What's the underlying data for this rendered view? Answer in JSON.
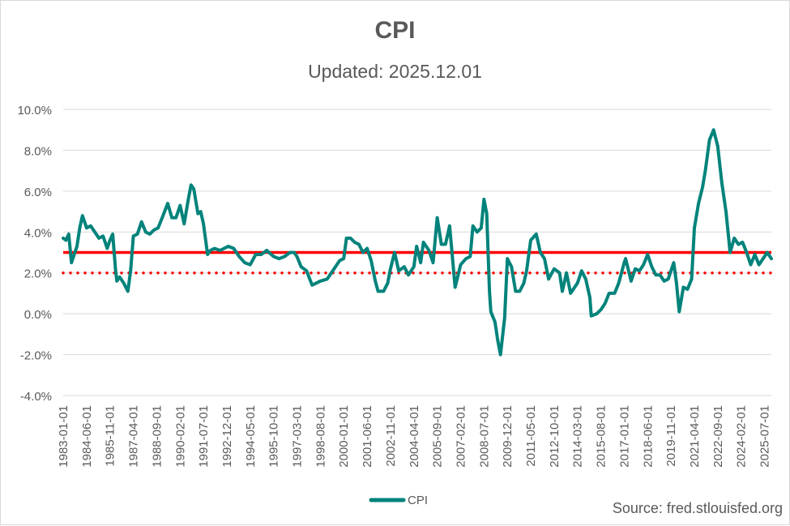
{
  "chart_data": {
    "type": "line",
    "title": "CPI",
    "subtitle": "Updated: 2025.12.01",
    "source": "Source: fred.stlouisfed.org",
    "ylim": [
      -4,
      10
    ],
    "yticks": [
      -4,
      -2,
      0,
      2,
      4,
      6,
      8,
      10
    ],
    "ytick_labels": [
      "-4.0%",
      "-2.0%",
      "0.0%",
      "2.0%",
      "4.0%",
      "6.0%",
      "8.0%",
      "10.0%"
    ],
    "xlim": [
      "1983-01-01",
      "2025-12-01"
    ],
    "xtick_labels": [
      "1983-01-01",
      "1984-06-01",
      "1985-11-01",
      "1987-04-01",
      "1988-09-01",
      "1990-02-01",
      "1991-07-01",
      "1992-12-01",
      "1994-05-01",
      "1995-10-01",
      "1997-03-01",
      "1998-08-01",
      "2000-01-01",
      "2001-06-01",
      "2002-11-01",
      "2004-04-01",
      "2005-09-01",
      "2007-02-01",
      "2008-07-01",
      "2009-12-01",
      "2011-05-01",
      "2012-10-01",
      "2014-03-01",
      "2015-08-01",
      "2017-01-01",
      "2018-06-01",
      "2019-11-01",
      "2021-04-01",
      "2022-09-01",
      "2024-02-01",
      "2025-07-01"
    ],
    "grid": true,
    "legend": "bottom",
    "series": [
      {
        "name": "CPI",
        "color": "#00837b",
        "line_width": 4,
        "points": [
          [
            "1983-01-01",
            3.7
          ],
          [
            "1983-03-01",
            3.6
          ],
          [
            "1983-05-01",
            3.9
          ],
          [
            "1983-07-01",
            2.5
          ],
          [
            "1983-09-01",
            2.9
          ],
          [
            "1983-11-01",
            3.3
          ],
          [
            "1984-01-01",
            4.2
          ],
          [
            "1984-03-01",
            4.8
          ],
          [
            "1984-06-01",
            4.2
          ],
          [
            "1984-09-01",
            4.3
          ],
          [
            "1984-12-01",
            4.0
          ],
          [
            "1985-03-01",
            3.7
          ],
          [
            "1985-06-01",
            3.8
          ],
          [
            "1985-09-01",
            3.2
          ],
          [
            "1985-11-01",
            3.6
          ],
          [
            "1986-01-01",
            3.9
          ],
          [
            "1986-03-01",
            2.2
          ],
          [
            "1986-04-01",
            1.6
          ],
          [
            "1986-06-01",
            1.8
          ],
          [
            "1986-09-01",
            1.5
          ],
          [
            "1986-12-01",
            1.1
          ],
          [
            "1987-02-01",
            2.1
          ],
          [
            "1987-04-01",
            3.8
          ],
          [
            "1987-07-01",
            3.9
          ],
          [
            "1987-10-01",
            4.5
          ],
          [
            "1988-01-01",
            4.0
          ],
          [
            "1988-04-01",
            3.9
          ],
          [
            "1988-07-01",
            4.1
          ],
          [
            "1988-10-01",
            4.2
          ],
          [
            "1989-01-01",
            4.7
          ],
          [
            "1989-05-01",
            5.4
          ],
          [
            "1989-08-01",
            4.7
          ],
          [
            "1989-11-01",
            4.7
          ],
          [
            "1990-02-01",
            5.3
          ],
          [
            "1990-05-01",
            4.4
          ],
          [
            "1990-08-01",
            5.6
          ],
          [
            "1990-10-01",
            6.3
          ],
          [
            "1990-12-01",
            6.1
          ],
          [
            "1991-03-01",
            4.9
          ],
          [
            "1991-05-01",
            5.0
          ],
          [
            "1991-07-01",
            4.4
          ],
          [
            "1991-10-01",
            2.9
          ],
          [
            "1991-12-01",
            3.1
          ],
          [
            "1992-03-01",
            3.2
          ],
          [
            "1992-07-01",
            3.1
          ],
          [
            "1992-10-01",
            3.2
          ],
          [
            "1993-01-01",
            3.3
          ],
          [
            "1993-05-01",
            3.2
          ],
          [
            "1993-09-01",
            2.8
          ],
          [
            "1994-01-01",
            2.5
          ],
          [
            "1994-05-01",
            2.4
          ],
          [
            "1994-09-01",
            2.9
          ],
          [
            "1995-01-01",
            2.9
          ],
          [
            "1995-05-01",
            3.1
          ],
          [
            "1995-10-01",
            2.8
          ],
          [
            "1996-02-01",
            2.7
          ],
          [
            "1996-06-01",
            2.8
          ],
          [
            "1996-10-01",
            3.0
          ],
          [
            "1997-01-01",
            3.0
          ],
          [
            "1997-03-01",
            2.8
          ],
          [
            "1997-06-01",
            2.3
          ],
          [
            "1997-10-01",
            2.1
          ],
          [
            "1998-02-01",
            1.4
          ],
          [
            "1998-08-01",
            1.6
          ],
          [
            "1999-01-01",
            1.7
          ],
          [
            "1999-05-01",
            2.1
          ],
          [
            "1999-10-01",
            2.6
          ],
          [
            "2000-01-01",
            2.7
          ],
          [
            "2000-03-01",
            3.7
          ],
          [
            "2000-06-01",
            3.7
          ],
          [
            "2000-09-01",
            3.5
          ],
          [
            "2000-12-01",
            3.4
          ],
          [
            "2001-03-01",
            3.0
          ],
          [
            "2001-06-01",
            3.2
          ],
          [
            "2001-09-01",
            2.6
          ],
          [
            "2001-12-01",
            1.6
          ],
          [
            "2002-02-01",
            1.1
          ],
          [
            "2002-06-01",
            1.1
          ],
          [
            "2002-09-01",
            1.5
          ],
          [
            "2002-11-01",
            2.2
          ],
          [
            "2003-02-01",
            3.0
          ],
          [
            "2003-05-01",
            2.1
          ],
          [
            "2003-09-01",
            2.3
          ],
          [
            "2003-12-01",
            1.9
          ],
          [
            "2004-04-01",
            2.3
          ],
          [
            "2004-06-01",
            3.3
          ],
          [
            "2004-09-01",
            2.5
          ],
          [
            "2004-11-01",
            3.5
          ],
          [
            "2005-03-01",
            3.1
          ],
          [
            "2005-06-01",
            2.5
          ],
          [
            "2005-09-01",
            4.7
          ],
          [
            "2005-12-01",
            3.4
          ],
          [
            "2006-03-01",
            3.4
          ],
          [
            "2006-06-01",
            4.3
          ],
          [
            "2006-10-01",
            1.3
          ],
          [
            "2007-02-01",
            2.4
          ],
          [
            "2007-06-01",
            2.7
          ],
          [
            "2007-09-01",
            2.8
          ],
          [
            "2007-11-01",
            4.3
          ],
          [
            "2008-02-01",
            4.0
          ],
          [
            "2008-05-01",
            4.2
          ],
          [
            "2008-07-01",
            5.6
          ],
          [
            "2008-09-01",
            4.9
          ],
          [
            "2008-11-01",
            1.1
          ],
          [
            "2008-12-01",
            0.1
          ],
          [
            "2009-03-01",
            -0.4
          ],
          [
            "2009-05-01",
            -1.3
          ],
          [
            "2009-07-01",
            -2.0
          ],
          [
            "2009-10-01",
            -0.2
          ],
          [
            "2009-12-01",
            2.7
          ],
          [
            "2010-03-01",
            2.3
          ],
          [
            "2010-06-01",
            1.1
          ],
          [
            "2010-09-01",
            1.1
          ],
          [
            "2010-12-01",
            1.5
          ],
          [
            "2011-02-01",
            2.1
          ],
          [
            "2011-05-01",
            3.6
          ],
          [
            "2011-09-01",
            3.9
          ],
          [
            "2011-12-01",
            3.0
          ],
          [
            "2012-03-01",
            2.7
          ],
          [
            "2012-06-01",
            1.7
          ],
          [
            "2012-10-01",
            2.2
          ],
          [
            "2013-02-01",
            2.0
          ],
          [
            "2013-04-01",
            1.1
          ],
          [
            "2013-07-01",
            2.0
          ],
          [
            "2013-10-01",
            1.0
          ],
          [
            "2014-03-01",
            1.5
          ],
          [
            "2014-06-01",
            2.1
          ],
          [
            "2014-09-01",
            1.7
          ],
          [
            "2014-12-01",
            0.8
          ],
          [
            "2015-01-01",
            -0.1
          ],
          [
            "2015-05-01",
            0.0
          ],
          [
            "2015-08-01",
            0.2
          ],
          [
            "2015-11-01",
            0.5
          ],
          [
            "2016-02-01",
            1.0
          ],
          [
            "2016-06-01",
            1.0
          ],
          [
            "2016-09-01",
            1.5
          ],
          [
            "2017-01-01",
            2.5
          ],
          [
            "2017-02-01",
            2.7
          ],
          [
            "2017-06-01",
            1.6
          ],
          [
            "2017-09-01",
            2.2
          ],
          [
            "2017-12-01",
            2.1
          ],
          [
            "2018-03-01",
            2.4
          ],
          [
            "2018-06-01",
            2.9
          ],
          [
            "2018-09-01",
            2.3
          ],
          [
            "2018-12-01",
            1.9
          ],
          [
            "2019-03-01",
            1.9
          ],
          [
            "2019-06-01",
            1.6
          ],
          [
            "2019-09-01",
            1.7
          ],
          [
            "2019-11-01",
            2.1
          ],
          [
            "2020-01-01",
            2.5
          ],
          [
            "2020-03-01",
            1.5
          ],
          [
            "2020-05-01",
            0.1
          ],
          [
            "2020-08-01",
            1.3
          ],
          [
            "2020-11-01",
            1.2
          ],
          [
            "2021-02-01",
            1.7
          ],
          [
            "2021-04-01",
            4.2
          ],
          [
            "2021-07-01",
            5.4
          ],
          [
            "2021-10-01",
            6.2
          ],
          [
            "2021-12-01",
            7.0
          ],
          [
            "2022-03-01",
            8.5
          ],
          [
            "2022-06-01",
            9.0
          ],
          [
            "2022-09-01",
            8.2
          ],
          [
            "2022-12-01",
            6.4
          ],
          [
            "2023-03-01",
            5.0
          ],
          [
            "2023-06-01",
            3.0
          ],
          [
            "2023-09-01",
            3.7
          ],
          [
            "2023-12-01",
            3.4
          ],
          [
            "2024-03-01",
            3.5
          ],
          [
            "2024-06-01",
            3.0
          ],
          [
            "2024-09-01",
            2.4
          ],
          [
            "2024-12-01",
            2.9
          ],
          [
            "2025-03-01",
            2.4
          ],
          [
            "2025-06-01",
            2.7
          ],
          [
            "2025-09-01",
            3.0
          ],
          [
            "2025-12-01",
            2.7
          ]
        ]
      }
    ],
    "reference_lines": [
      {
        "y": 3.0,
        "style": "solid",
        "color": "#ff0000"
      },
      {
        "y": 2.0,
        "style": "dotted",
        "color": "#ff0000"
      }
    ]
  }
}
